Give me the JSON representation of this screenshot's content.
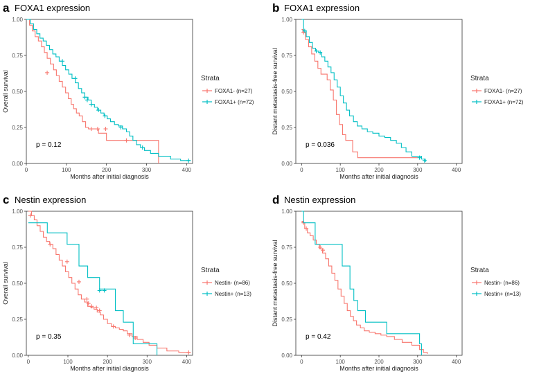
{
  "chart_data": [
    {
      "type": "line",
      "panel_letter": "a",
      "title": "FOXA1 expression",
      "xlabel": "Months after initial diagnosis",
      "ylabel": "Overall survival",
      "xlim": [
        0,
        415
      ],
      "ylim": [
        0,
        1
      ],
      "xticks": [
        "0",
        "100",
        "200",
        "300",
        "400"
      ],
      "yticks": [
        "0.00",
        "0.25",
        "0.50",
        "0.75",
        "1.00"
      ],
      "pvalue": "p = 0.12",
      "legend": {
        "title": "Strata",
        "position": "right"
      },
      "series": [
        {
          "name": "FOXA1- (n=27)",
          "color": "#F8766D",
          "x": [
            0,
            8,
            15,
            22,
            30,
            38,
            45,
            52,
            60,
            68,
            75,
            82,
            90,
            98,
            105,
            112,
            118,
            125,
            132,
            140,
            148,
            155,
            175,
            180,
            200,
            250,
            330
          ],
          "y": [
            1.0,
            0.96,
            0.92,
            0.88,
            0.85,
            0.81,
            0.77,
            0.73,
            0.69,
            0.65,
            0.61,
            0.57,
            0.53,
            0.49,
            0.45,
            0.41,
            0.38,
            0.35,
            0.33,
            0.29,
            0.25,
            0.24,
            0.24,
            0.21,
            0.16,
            0.16,
            0.0
          ],
          "censors": [
            [
              52,
              0.63
            ],
            [
              162,
              0.24
            ],
            [
              178,
              0.24
            ],
            [
              198,
              0.24
            ],
            [
              250,
              0.16
            ]
          ]
        },
        {
          "name": "FOXA1+ (n=72)",
          "color": "#00BFC4",
          "x": [
            0,
            10,
            18,
            26,
            34,
            42,
            50,
            58,
            66,
            74,
            82,
            90,
            98,
            106,
            114,
            122,
            130,
            138,
            146,
            154,
            162,
            170,
            178,
            186,
            194,
            202,
            210,
            220,
            230,
            240,
            250,
            258,
            266,
            275,
            285,
            295,
            310,
            330,
            360,
            385,
            410
          ],
          "y": [
            1.0,
            0.97,
            0.93,
            0.9,
            0.87,
            0.85,
            0.82,
            0.79,
            0.76,
            0.74,
            0.71,
            0.68,
            0.65,
            0.62,
            0.59,
            0.56,
            0.52,
            0.49,
            0.46,
            0.44,
            0.41,
            0.39,
            0.37,
            0.35,
            0.33,
            0.31,
            0.29,
            0.27,
            0.26,
            0.24,
            0.22,
            0.19,
            0.16,
            0.13,
            0.11,
            0.09,
            0.07,
            0.05,
            0.03,
            0.02,
            0.02
          ],
          "censors": [
            [
              90,
              0.71
            ],
            [
              122,
              0.59
            ],
            [
              146,
              0.46
            ],
            [
              152,
              0.44
            ],
            [
              162,
              0.41
            ],
            [
              180,
              0.37
            ],
            [
              196,
              0.33
            ],
            [
              236,
              0.25
            ],
            [
              290,
              0.11
            ],
            [
              405,
              0.02
            ]
          ]
        }
      ]
    },
    {
      "type": "line",
      "panel_letter": "b",
      "title": "FOXA1 expression",
      "xlabel": "Months after initial diagnosis",
      "ylabel": "Distant metastasis-free survival",
      "xlim": [
        -15,
        415
      ],
      "ylim": [
        0,
        1
      ],
      "xticks": [
        "0",
        "100",
        "200",
        "300",
        "400"
      ],
      "yticks": [
        "0.00",
        "0.25",
        "0.50",
        "0.75",
        "1.00"
      ],
      "pvalue": "p = 0.036",
      "legend": {
        "title": "Strata",
        "position": "right"
      },
      "series": [
        {
          "name": "FOXA1- (n=27)",
          "color": "#F8766D",
          "x": [
            0,
            3,
            10,
            18,
            26,
            34,
            42,
            50,
            58,
            66,
            74,
            82,
            90,
            98,
            106,
            114,
            122,
            132,
            145,
            165,
            180,
            300
          ],
          "y": [
            0.93,
            0.91,
            0.86,
            0.81,
            0.76,
            0.71,
            0.66,
            0.62,
            0.62,
            0.58,
            0.51,
            0.44,
            0.34,
            0.27,
            0.2,
            0.16,
            0.16,
            0.08,
            0.04,
            0.04,
            0.04,
            0.04
          ],
          "censors": [
            [
              5,
              0.91
            ]
          ]
        },
        {
          "name": "FOXA1+ (n=72)",
          "color": "#00BFC4",
          "x": [
            0,
            5,
            12,
            20,
            28,
            36,
            44,
            52,
            60,
            68,
            76,
            84,
            92,
            100,
            108,
            116,
            124,
            134,
            144,
            156,
            170,
            184,
            200,
            215,
            230,
            245,
            258,
            270,
            285,
            300,
            310,
            320
          ],
          "y": [
            1.0,
            0.92,
            0.88,
            0.84,
            0.8,
            0.78,
            0.77,
            0.74,
            0.71,
            0.67,
            0.63,
            0.58,
            0.53,
            0.47,
            0.42,
            0.37,
            0.33,
            0.29,
            0.26,
            0.24,
            0.22,
            0.21,
            0.19,
            0.18,
            0.16,
            0.14,
            0.11,
            0.08,
            0.05,
            0.05,
            0.03,
            0.01
          ],
          "censors": [
            [
              8,
              0.92
            ],
            [
              38,
              0.78
            ],
            [
              48,
              0.77
            ],
            [
              305,
              0.04
            ],
            [
              318,
              0.02
            ]
          ]
        }
      ]
    },
    {
      "type": "line",
      "panel_letter": "c",
      "title": "Nestin expression",
      "xlabel": "Months after initial diagnosis",
      "ylabel": "Overall survival",
      "xlim": [
        -5,
        415
      ],
      "ylim": [
        0,
        1
      ],
      "xticks": [
        "0",
        "100",
        "200",
        "300",
        "400"
      ],
      "yticks": [
        "0.00",
        "0.25",
        "0.50",
        "0.75",
        "1.00"
      ],
      "pvalue": "p = 0.35",
      "legend": {
        "title": "Strata",
        "position": "right"
      },
      "series": [
        {
          "name": "Nestin- (n=86)",
          "color": "#F8766D",
          "x": [
            0,
            8,
            15,
            22,
            30,
            38,
            46,
            54,
            62,
            70,
            78,
            86,
            94,
            102,
            110,
            118,
            126,
            134,
            142,
            150,
            158,
            166,
            174,
            182,
            190,
            200,
            210,
            220,
            230,
            240,
            250,
            262,
            275,
            290,
            305,
            325,
            350,
            380,
            410
          ],
          "y": [
            1.0,
            0.97,
            0.94,
            0.9,
            0.86,
            0.82,
            0.79,
            0.77,
            0.74,
            0.7,
            0.66,
            0.62,
            0.58,
            0.54,
            0.5,
            0.46,
            0.42,
            0.39,
            0.37,
            0.34,
            0.33,
            0.32,
            0.3,
            0.28,
            0.25,
            0.22,
            0.2,
            0.19,
            0.18,
            0.17,
            0.15,
            0.13,
            0.11,
            0.09,
            0.07,
            0.05,
            0.03,
            0.02,
            0.02
          ],
          "censors": [
            [
              5,
              0.97
            ],
            [
              55,
              0.77
            ],
            [
              98,
              0.65
            ],
            [
              128,
              0.51
            ],
            [
              148,
              0.39
            ],
            [
              152,
              0.36
            ],
            [
              160,
              0.34
            ],
            [
              172,
              0.33
            ],
            [
              180,
              0.31
            ],
            [
              215,
              0.2
            ],
            [
              255,
              0.14
            ],
            [
              270,
              0.12
            ],
            [
              405,
              0.02
            ]
          ]
        },
        {
          "name": "Nestin+ (n=13)",
          "color": "#00BFC4",
          "x": [
            0,
            10,
            48,
            98,
            128,
            150,
            180,
            220,
            240,
            265,
            325
          ],
          "y": [
            0.92,
            0.92,
            0.85,
            0.77,
            0.62,
            0.54,
            0.46,
            0.31,
            0.23,
            0.08,
            0.0
          ],
          "censors": [
            [
              180,
              0.45
            ],
            [
              192,
              0.45
            ]
          ]
        }
      ]
    },
    {
      "type": "line",
      "panel_letter": "d",
      "title": "Nestin expression",
      "xlabel": "Months after initial diagnosis",
      "ylabel": "Distant metastasis-free survival",
      "xlim": [
        -15,
        415
      ],
      "ylim": [
        0,
        1
      ],
      "xticks": [
        "0",
        "100",
        "200",
        "300",
        "400"
      ],
      "yticks": [
        "0.00",
        "0.25",
        "0.50",
        "0.75",
        "1.00"
      ],
      "pvalue": "p = 0.42",
      "legend": {
        "title": "Strata",
        "position": "right"
      },
      "series": [
        {
          "name": "Nestin- (n=86)",
          "color": "#F8766D",
          "x": [
            0,
            3,
            8,
            15,
            22,
            30,
            38,
            46,
            54,
            62,
            70,
            78,
            86,
            94,
            102,
            110,
            118,
            126,
            134,
            142,
            152,
            162,
            175,
            190,
            205,
            220,
            240,
            260,
            285,
            305,
            315,
            325
          ],
          "y": [
            0.93,
            0.92,
            0.88,
            0.85,
            0.83,
            0.8,
            0.77,
            0.74,
            0.71,
            0.67,
            0.62,
            0.57,
            0.52,
            0.46,
            0.41,
            0.36,
            0.31,
            0.27,
            0.24,
            0.21,
            0.19,
            0.17,
            0.16,
            0.15,
            0.14,
            0.13,
            0.11,
            0.09,
            0.07,
            0.04,
            0.02,
            0.01
          ],
          "censors": [
            [
              5,
              0.92
            ],
            [
              12,
              0.88
            ],
            [
              48,
              0.75
            ],
            [
              55,
              0.73
            ]
          ]
        },
        {
          "name": "Nestin+ (n=13)",
          "color": "#00BFC4",
          "x": [
            0,
            5,
            35,
            105,
            125,
            135,
            145,
            165,
            220,
            305,
            310
          ],
          "y": [
            1.0,
            0.92,
            0.77,
            0.62,
            0.46,
            0.38,
            0.31,
            0.23,
            0.15,
            0.08,
            0.0
          ],
          "censors": []
        }
      ]
    }
  ]
}
